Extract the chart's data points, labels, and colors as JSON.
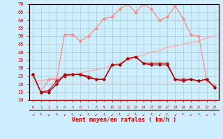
{
  "xlabel": "Vent moyen/en rafales ( km/h )",
  "x_labels": [
    0,
    1,
    2,
    3,
    4,
    5,
    6,
    7,
    8,
    9,
    10,
    11,
    12,
    13,
    14,
    15,
    16,
    17,
    18,
    19,
    20,
    21,
    22,
    23
  ],
  "ylim": [
    10,
    70
  ],
  "yticks": [
    10,
    15,
    20,
    25,
    30,
    35,
    40,
    45,
    50,
    55,
    60,
    65,
    70
  ],
  "bg_color": "#cceeff",
  "grid_color": "#aacccc",
  "line_dark_red": [
    26,
    15,
    15,
    20,
    26,
    26,
    26,
    24,
    23,
    23,
    32,
    32,
    36,
    37,
    33,
    32,
    32,
    32,
    23,
    22,
    23,
    22,
    23,
    18
  ],
  "line_medium_red": [
    26,
    15,
    16,
    22,
    25,
    26,
    26,
    25,
    23,
    23,
    32,
    32,
    36,
    37,
    33,
    33,
    33,
    33,
    23,
    23,
    23,
    22,
    23,
    18
  ],
  "line_light_upper": [
    26,
    15,
    23,
    23,
    51,
    51,
    47,
    50,
    55,
    61,
    62,
    67,
    70,
    65,
    70,
    67,
    60,
    62,
    69,
    61,
    51,
    50,
    22,
    19
  ],
  "line_slope": [
    22,
    22,
    23,
    24,
    25,
    26,
    27,
    28,
    29,
    30,
    32,
    33,
    35,
    37,
    38,
    40,
    41,
    43,
    44,
    45,
    46,
    47,
    49,
    50
  ],
  "line_flat": [
    21,
    21,
    21,
    21,
    21,
    21,
    21,
    21,
    21,
    21,
    21,
    21,
    21,
    21,
    21,
    21,
    21,
    21,
    21,
    21,
    21,
    21,
    21,
    21
  ],
  "dark_red_color": "#aa0000",
  "medium_red_color": "#cc2222",
  "light_red_color": "#ff8888",
  "slope_color": "#ffaaaa",
  "flat_color": "#ffcccc",
  "axis_color": "#cc0000"
}
